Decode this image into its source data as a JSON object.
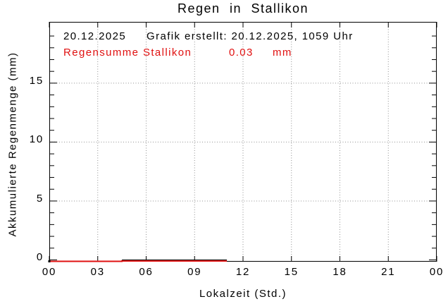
{
  "chart_data": {
    "type": "line",
    "title": "Regen in Stallikon",
    "xlabel": "Lokalzeit (Std.)",
    "ylabel": "Akkumulierte Regenmenge (mm)",
    "xlim": [
      0,
      24
    ],
    "ylim": [
      -0.15,
      20.2
    ],
    "xticks": {
      "values": [
        0,
        3,
        6,
        9,
        12,
        15,
        18,
        21,
        24
      ],
      "labels": [
        "00",
        "03",
        "06",
        "09",
        "12",
        "15",
        "18",
        "21",
        "00"
      ]
    },
    "yticks": {
      "values": [
        0,
        5,
        10,
        15
      ],
      "labels": [
        "0",
        "5",
        "10",
        "15"
      ]
    },
    "y_minor_step": 1,
    "grid": {
      "style": "dotted",
      "at_x_major": true,
      "at_y_major": true
    },
    "legend_position": "none",
    "annotations": {
      "date": "20.12.2025",
      "created": "Grafik erstellt: 20.12.2025, 1059 Uhr",
      "sum_label": "Regensumme Stallikon",
      "sum_value": "0.03",
      "sum_unit": "mm"
    },
    "series": [
      {
        "name": "Akkumulierte Regensumme Stallikon (mm)",
        "color": "#e01010",
        "points": [
          [
            0,
            0
          ],
          [
            4.5,
            0
          ],
          [
            4.5,
            0.03
          ],
          [
            11,
            0.03
          ]
        ]
      }
    ],
    "colors": {
      "axis": "#000000",
      "grid": "#909090",
      "series_red": "#e01010",
      "annotation_red": "#e01010",
      "text": "#000000",
      "background": "#ffffff"
    }
  }
}
